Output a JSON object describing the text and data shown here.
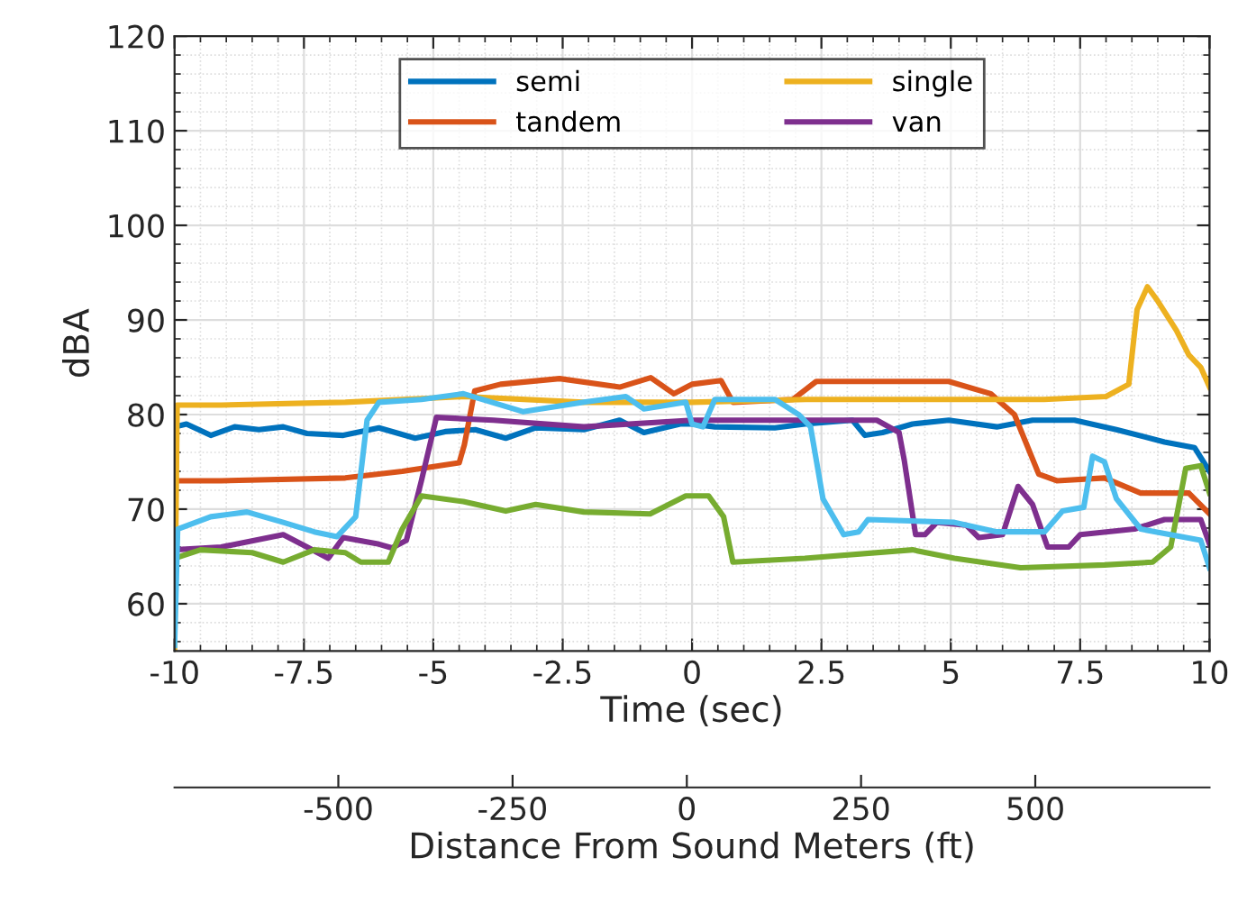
{
  "chart_data": {
    "type": "line",
    "xlabel": "Time (sec)",
    "ylabel": "dBA",
    "x2label": "Distance From Sound Meters (ft)",
    "xlim": [
      -10,
      10
    ],
    "xticks": [
      -10,
      -7.5,
      -5,
      -2.5,
      0,
      2.5,
      5,
      7.5,
      10
    ],
    "ylim": [
      55,
      120
    ],
    "yticks": [
      60,
      70,
      80,
      90,
      100,
      110,
      120
    ],
    "x2lim": [
      -735,
      750
    ],
    "x2ticks": [
      -500,
      -250,
      0,
      250,
      500
    ],
    "grid": true,
    "legend": "top",
    "line_style": "solid",
    "series": [
      {
        "name": "semi",
        "color": "#0072bd",
        "x": [
          -10,
          -9.77,
          -9.3,
          -8.84,
          -8.37,
          -7.9,
          -7.44,
          -6.74,
          -6.05,
          -5.35,
          -4.77,
          -4.19,
          -3.6,
          -3.02,
          -2.09,
          -1.4,
          -0.93,
          -0.23,
          0,
          0.44,
          1.6,
          2.18,
          3.1,
          3.34,
          3.68,
          4.26,
          4.96,
          5.89,
          6.58,
          7.39,
          8.2,
          9.13,
          9.71,
          10
        ],
        "values": [
          78.7,
          79,
          77.8,
          78.7,
          78.4,
          78.7,
          78,
          77.8,
          78.6,
          77.5,
          78.2,
          78.4,
          77.5,
          78.6,
          78.4,
          79.4,
          78.1,
          79,
          79,
          78.7,
          78.6,
          79,
          79.4,
          77.8,
          78.1,
          79,
          79.4,
          78.7,
          79.4,
          79.4,
          78.4,
          77.1,
          76.5,
          74
        ]
      },
      {
        "name": "tandem",
        "color": "#d95319",
        "x": [
          -10,
          -9.1,
          -6.7,
          -5.6,
          -4.5,
          -4.4,
          -4.2,
          -3.7,
          -2.56,
          -1.4,
          -0.8,
          -0.35,
          0,
          0.56,
          0.79,
          1.95,
          2.4,
          3.8,
          4.96,
          5.77,
          6.23,
          6.7,
          7.05,
          7.97,
          8.67,
          9.6,
          10
        ],
        "values": [
          73,
          73,
          73.3,
          74,
          74.9,
          76.8,
          82.5,
          83.2,
          83.8,
          82.9,
          83.9,
          82.2,
          83.2,
          83.6,
          81.3,
          81.6,
          83.5,
          83.5,
          83.5,
          82.2,
          80,
          73.7,
          73,
          73.3,
          71.7,
          71.7,
          69.5
        ]
      },
      {
        "name": "single",
        "color": "#edb120",
        "x": [
          -10,
          -9.95,
          -9.1,
          -6.7,
          -4.4,
          -2.1,
          0,
          2.2,
          4.5,
          6.8,
          8,
          8.44,
          8.6,
          8.8,
          9.0,
          9.36,
          9.6,
          9.83,
          10
        ],
        "values": [
          55.2,
          81,
          81,
          81.3,
          81.9,
          81.3,
          81.3,
          81.6,
          81.6,
          81.6,
          81.9,
          83.2,
          91.1,
          93.5,
          92,
          88.9,
          86.3,
          85,
          82.9
        ]
      },
      {
        "name": "van",
        "color": "#7e2f8e",
        "x": [
          -10,
          -9.1,
          -7.9,
          -7.44,
          -7.03,
          -6.74,
          -6.05,
          -5.8,
          -5.52,
          -5.23,
          -4.94,
          -3.84,
          -2.09,
          0,
          1.6,
          3.57,
          4.0,
          4.1,
          4.32,
          4.5,
          4.73,
          5.3,
          5.54,
          6.0,
          6.3,
          6.58,
          6.87,
          7.28,
          7.5,
          8.55,
          9.13,
          9.83,
          10
        ],
        "values": [
          65.7,
          66,
          67.3,
          66,
          64.8,
          67,
          66.3,
          65.9,
          66.7,
          73,
          79.7,
          79.4,
          78.7,
          79.4,
          79.4,
          79.4,
          78.1,
          75.2,
          67.3,
          67.3,
          68.6,
          68.3,
          67,
          67.3,
          72.4,
          70.5,
          66,
          66,
          67.3,
          67.9,
          68.9,
          68.9,
          66.3
        ]
      },
      {
        "color": "#77ac30",
        "x": [
          -10,
          -9.5,
          -8.5,
          -7.9,
          -7.3,
          -6.7,
          -6.4,
          -5.87,
          -5.6,
          -5.23,
          -4.42,
          -3.6,
          -3.02,
          -2.09,
          -0.81,
          -0.12,
          0.32,
          0.61,
          0.79,
          2.18,
          4.26,
          5.07,
          6.35,
          7.97,
          8.9,
          9.25,
          9.54,
          9.83,
          10
        ],
        "values": [
          64.8,
          65.7,
          65.4,
          64.4,
          65.7,
          65.4,
          64.4,
          64.4,
          67.9,
          71.4,
          70.8,
          69.8,
          70.5,
          69.7,
          69.5,
          71.4,
          71.4,
          69.2,
          64.4,
          64.8,
          65.7,
          64.8,
          63.8,
          64.1,
          64.4,
          66,
          74.3,
          74.6,
          71.7
        ]
      },
      {
        "color": "#4dbeee",
        "x": [
          -10,
          -9.94,
          -9.3,
          -8.6,
          -7.9,
          -7.3,
          -6.86,
          -6.5,
          -6.28,
          -6.05,
          -5.23,
          -4.42,
          -3.26,
          -2.09,
          -1.28,
          -0.93,
          -0.12,
          0,
          0.21,
          0.44,
          1.6,
          2.06,
          2.29,
          2.53,
          2.93,
          3.22,
          3.4,
          5.07,
          5.89,
          6.81,
          7.16,
          7.57,
          7.74,
          7.97,
          8.2,
          8.67,
          9.83,
          10
        ],
        "values": [
          55.6,
          67.9,
          69.2,
          69.7,
          68.6,
          67.6,
          67.1,
          69.2,
          79.4,
          81.3,
          81.6,
          82.2,
          80.3,
          81.3,
          81.9,
          80.6,
          81.3,
          79,
          78.7,
          81.6,
          81.6,
          80,
          78.7,
          71.1,
          67.3,
          67.6,
          68.9,
          68.6,
          67.6,
          67.6,
          69.8,
          70.2,
          75.6,
          75,
          71.1,
          67.9,
          66.7,
          63.8
        ]
      }
    ]
  }
}
